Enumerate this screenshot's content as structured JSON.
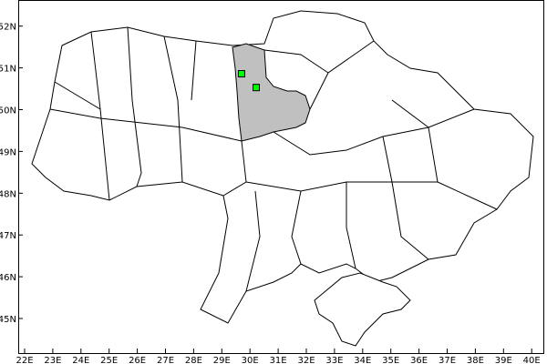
{
  "map": {
    "highlighted_region": "Kyiv Oblast",
    "colors": {
      "highlight_fill": "#c0c0c0",
      "marker_fill": "#00ff00",
      "border": "#000000",
      "background": "#ffffff"
    },
    "lon_ticks": [
      "22E",
      "23E",
      "24E",
      "25E",
      "26E",
      "27E",
      "28E",
      "29E",
      "30E",
      "31E",
      "32E",
      "33E",
      "34E",
      "35E",
      "36E",
      "37E",
      "38E",
      "39E",
      "40E"
    ],
    "lat_ticks": [
      "45N",
      "46N",
      "47N",
      "48N",
      "49N",
      "50N",
      "51N",
      "52N"
    ],
    "markers": [
      {
        "lon": 29.7,
        "lat": 50.86
      },
      {
        "lon": 30.22,
        "lat": 50.53
      }
    ]
  }
}
